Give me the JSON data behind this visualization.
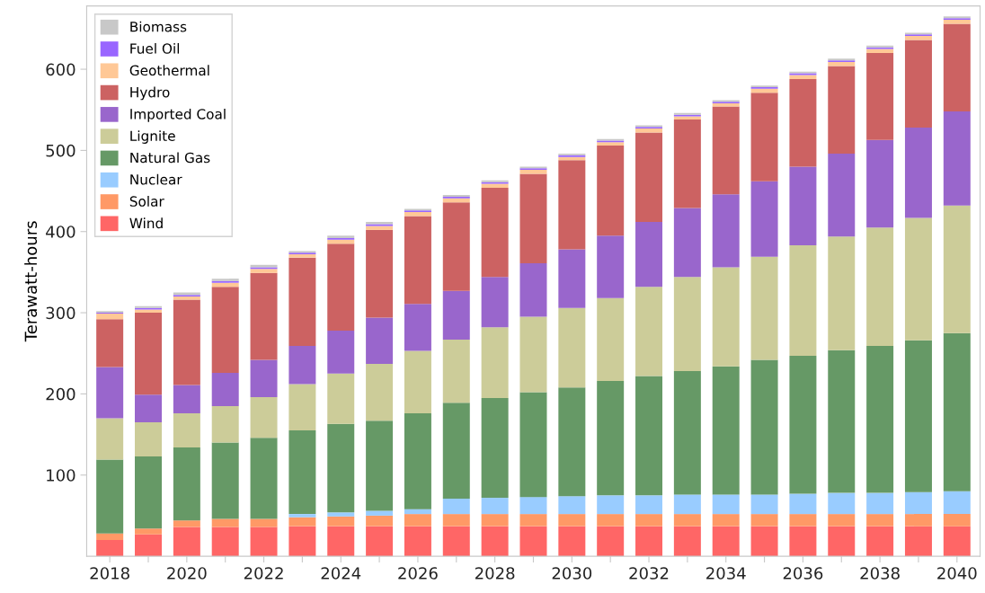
{
  "chart_data": {
    "type": "bar",
    "stacked": true,
    "ylabel": "Terawatt-hours",
    "categories": [
      "2018",
      null,
      "2020",
      null,
      "2022",
      null,
      "2024",
      null,
      "2026",
      null,
      "2028",
      null,
      "2030",
      null,
      "2032",
      null,
      "2034",
      null,
      "2036",
      null,
      "2038",
      null,
      "2040"
    ],
    "ylim": [
      0,
      678
    ],
    "yticks": [
      100,
      200,
      300,
      400,
      500,
      600
    ],
    "grid": false,
    "legend": "top left",
    "series": [
      {
        "name": "Wind",
        "color": "#ff6666",
        "values": [
          20,
          27,
          36,
          36,
          36,
          37,
          37,
          37,
          37,
          37,
          37,
          37,
          37,
          37,
          37,
          37,
          37,
          37,
          37,
          37,
          37,
          37,
          37
        ]
      },
      {
        "name": "Solar",
        "color": "#ff9966",
        "values": [
          8,
          7,
          8,
          10,
          10,
          11,
          12,
          13,
          15,
          15,
          15,
          15,
          15,
          15,
          15,
          15,
          15,
          15,
          15,
          15,
          15,
          15,
          15
        ]
      },
      {
        "name": "Nuclear",
        "color": "#99ccff",
        "values": [
          0,
          0,
          0,
          0,
          0,
          4,
          5,
          6,
          6,
          19,
          20,
          21,
          22,
          23,
          23,
          24,
          24,
          24,
          25,
          26,
          26,
          27,
          28
        ]
      },
      {
        "name": "Natural Gas",
        "color": "#669966",
        "values": [
          91,
          89,
          90,
          94,
          100,
          103,
          109,
          111,
          118,
          118,
          123,
          129,
          134,
          141,
          147,
          152,
          158,
          166,
          170,
          176,
          181,
          187,
          195
        ]
      },
      {
        "name": "Lignite",
        "color": "#cccc99",
        "values": [
          51,
          42,
          42,
          45,
          50,
          57,
          62,
          70,
          77,
          78,
          87,
          93,
          98,
          102,
          110,
          116,
          122,
          127,
          136,
          140,
          146,
          151,
          157
        ]
      },
      {
        "name": "Imported Coal",
        "color": "#9966cc",
        "values": [
          63,
          34,
          35,
          41,
          46,
          47,
          53,
          57,
          58,
          60,
          62,
          66,
          72,
          77,
          80,
          85,
          90,
          93,
          97,
          102,
          108,
          111,
          116
        ]
      },
      {
        "name": "Hydro",
        "color": "#cc6262",
        "values": [
          59,
          101,
          105,
          106,
          107,
          109,
          107,
          108,
          108,
          109,
          110,
          110,
          110,
          111,
          110,
          109,
          108,
          109,
          108,
          108,
          107,
          108,
          108
        ]
      },
      {
        "name": "Geothermal",
        "color": "#ffc896",
        "values": [
          7,
          4,
          4,
          5,
          5,
          4,
          5,
          5,
          5,
          5,
          5,
          5,
          4,
          4,
          5,
          4,
          4,
          5,
          5,
          5,
          5,
          5,
          5
        ]
      },
      {
        "name": "Fuel Oil",
        "color": "#9966ff",
        "values": [
          1,
          2,
          2,
          2,
          2,
          2,
          2,
          2,
          2,
          2,
          2,
          2,
          2,
          2,
          2,
          2,
          2,
          2,
          2,
          2,
          2,
          2,
          2
        ]
      },
      {
        "name": "Biomass",
        "color": "#c8c8c8",
        "values": [
          2,
          2,
          3,
          3,
          3,
          2,
          3,
          3,
          2,
          2,
          2,
          2,
          2,
          2,
          2,
          2,
          2,
          2,
          2,
          2,
          2,
          2,
          2
        ]
      }
    ]
  }
}
